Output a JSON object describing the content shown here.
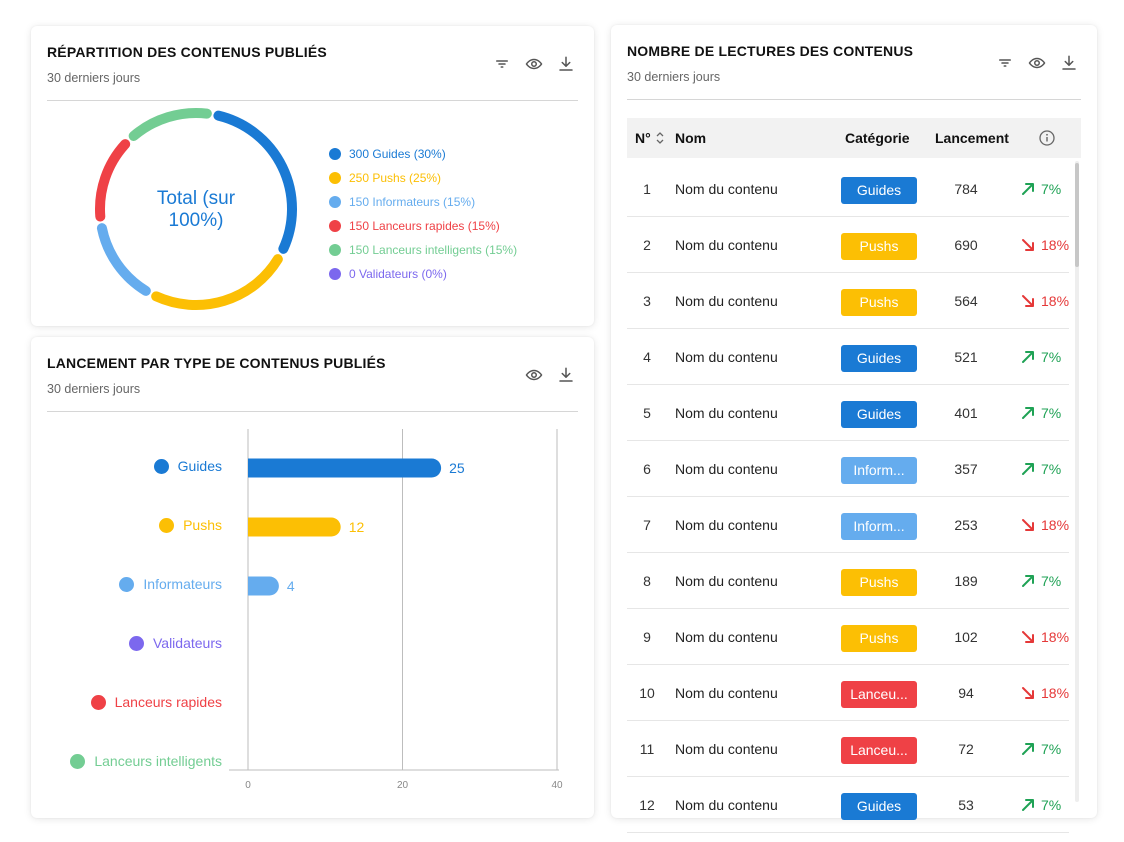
{
  "colors": {
    "guides": "#1a7ad4",
    "pushs": "#fcbf04",
    "informateurs": "#65acee",
    "lanceurs_rapides": "#ef4146",
    "lanceurs_intelligents": "#73cd93",
    "validateurs": "#7c68ee",
    "trend_up": "#1fa255",
    "trend_down": "#e53838"
  },
  "donut_card": {
    "title": "RÉPARTITION DES CONTENUS PUBLIÉS",
    "subtitle": "30 derniers jours",
    "icons": [
      "filter-icon",
      "eye-icon",
      "download-icon"
    ],
    "center_text_line1": "Total (sur",
    "center_text_line2": "100%)",
    "legend": [
      {
        "label": "300 Guides (30%)",
        "color": "#1a7ad4"
      },
      {
        "label": "250 Pushs (25%)",
        "color": "#fcbf04"
      },
      {
        "label": "150 Informateurs (15%)",
        "color": "#65acee"
      },
      {
        "label": "150 Lanceurs rapides (15%)",
        "color": "#ef4146"
      },
      {
        "label": "150 Lanceurs intelligents (15%)",
        "color": "#73cd93"
      },
      {
        "label": "0 Validateurs (0%)",
        "color": "#7c68ee"
      }
    ]
  },
  "bar_card": {
    "title": "LANCEMENT PAR TYPE DE CONTENUS PUBLIÉS",
    "subtitle": "30 derniers jours",
    "icons": [
      "eye-icon",
      "download-icon"
    ]
  },
  "chart_data": [
    {
      "type": "pie",
      "title": "RÉPARTITION DES CONTENUS PUBLIÉS",
      "subtitle": "30 derniers jours",
      "categories": [
        "Guides",
        "Pushs",
        "Informateurs",
        "Lanceurs rapides",
        "Lanceurs intelligents",
        "Validateurs"
      ],
      "values": [
        300,
        250,
        150,
        150,
        150,
        0
      ],
      "percentages": [
        30,
        25,
        15,
        15,
        15,
        0
      ],
      "colors": [
        "#1a7ad4",
        "#fcbf04",
        "#65acee",
        "#ef4146",
        "#73cd93",
        "#7c68ee"
      ],
      "style": "donut",
      "legend": "right"
    },
    {
      "type": "bar",
      "orientation": "horizontal",
      "title": "LANCEMENT PAR TYPE DE CONTENUS PUBLIÉS",
      "subtitle": "30 derniers jours",
      "categories": [
        "Guides",
        "Pushs",
        "Informateurs",
        "Validateurs",
        "Lanceurs rapides",
        "Lanceurs intelligents"
      ],
      "values": [
        25,
        12,
        4,
        0,
        0,
        0
      ],
      "value_labels": [
        "25",
        "12",
        "4",
        "",
        "",
        ""
      ],
      "colors": [
        "#1a7ad4",
        "#fcbf04",
        "#65acee",
        "#7c68ee",
        "#ef4146",
        "#73cd93"
      ],
      "xlim": [
        0,
        40
      ],
      "xticks": [
        "0",
        "20",
        "40"
      ],
      "grid": true
    }
  ],
  "table_card": {
    "title": "NOMBRE DE LECTURES DES CONTENUS",
    "subtitle": "30 derniers jours",
    "icons": [
      "filter-icon",
      "eye-icon",
      "download-icon"
    ],
    "headers": {
      "num": "N°",
      "nom": "Nom",
      "categorie": "Catégorie",
      "lancement": "Lancement"
    },
    "rows": [
      {
        "num": "1",
        "nom": "Nom du contenu",
        "categorie": "Guides",
        "cat_color": "#1a7ad4",
        "lancement": "784",
        "trend": "7%",
        "dir": "up"
      },
      {
        "num": "2",
        "nom": "Nom du contenu",
        "categorie": "Pushs",
        "cat_color": "#fcbf04",
        "lancement": "690",
        "trend": "18%",
        "dir": "down"
      },
      {
        "num": "3",
        "nom": "Nom du contenu",
        "categorie": "Pushs",
        "cat_color": "#fcbf04",
        "lancement": "564",
        "trend": "18%",
        "dir": "down"
      },
      {
        "num": "4",
        "nom": "Nom du contenu",
        "categorie": "Guides",
        "cat_color": "#1a7ad4",
        "lancement": "521",
        "trend": "7%",
        "dir": "up"
      },
      {
        "num": "5",
        "nom": "Nom du contenu",
        "categorie": "Guides",
        "cat_color": "#1a7ad4",
        "lancement": "401",
        "trend": "7%",
        "dir": "up"
      },
      {
        "num": "6",
        "nom": "Nom du contenu",
        "categorie": "Inform...",
        "cat_color": "#65acee",
        "lancement": "357",
        "trend": "7%",
        "dir": "up"
      },
      {
        "num": "7",
        "nom": "Nom du contenu",
        "categorie": "Inform...",
        "cat_color": "#65acee",
        "lancement": "253",
        "trend": "18%",
        "dir": "down"
      },
      {
        "num": "8",
        "nom": "Nom du contenu",
        "categorie": "Pushs",
        "cat_color": "#fcbf04",
        "lancement": "189",
        "trend": "7%",
        "dir": "up"
      },
      {
        "num": "9",
        "nom": "Nom du contenu",
        "categorie": "Pushs",
        "cat_color": "#fcbf04",
        "lancement": "102",
        "trend": "18%",
        "dir": "down"
      },
      {
        "num": "10",
        "nom": "Nom du contenu",
        "categorie": "Lanceu...",
        "cat_color": "#ef4146",
        "lancement": "94",
        "trend": "18%",
        "dir": "down"
      },
      {
        "num": "11",
        "nom": "Nom du contenu",
        "categorie": "Lanceu...",
        "cat_color": "#ef4146",
        "lancement": "72",
        "trend": "7%",
        "dir": "up"
      },
      {
        "num": "12",
        "nom": "Nom du contenu",
        "categorie": "Guides",
        "cat_color": "#1a7ad4",
        "lancement": "53",
        "trend": "7%",
        "dir": "up"
      }
    ]
  }
}
